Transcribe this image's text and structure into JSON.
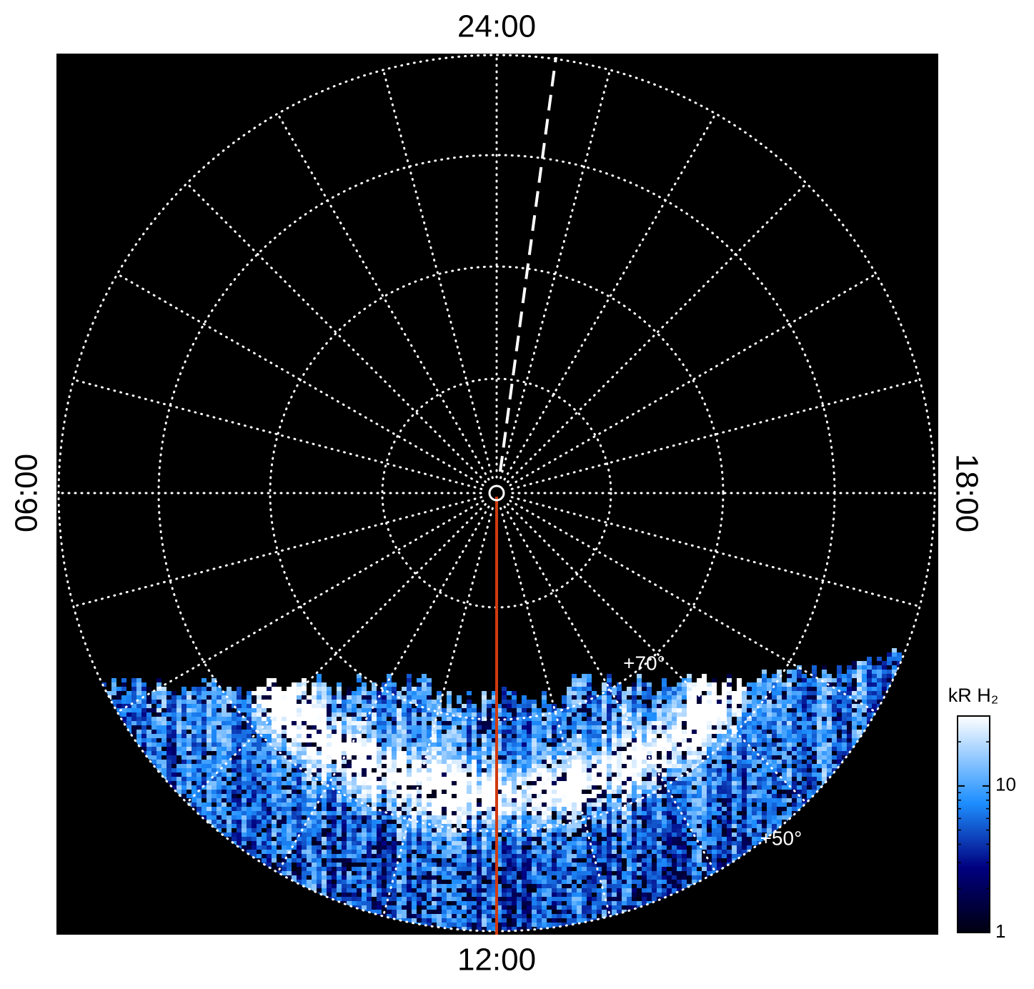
{
  "chart_data": {
    "type": "polar-image",
    "local_time_labels": [
      "24:00",
      "06:00",
      "12:00",
      "18:00"
    ],
    "rlim": [
      90,
      50
    ],
    "rticks": [
      {
        "value": 70,
        "label": "+70°"
      },
      {
        "value": 50,
        "label": "+50°"
      }
    ],
    "colorbar": {
      "label": "kR H₂",
      "lim": [
        1,
        30
      ],
      "ticks": [
        1,
        10
      ],
      "log": true
    }
  }
}
